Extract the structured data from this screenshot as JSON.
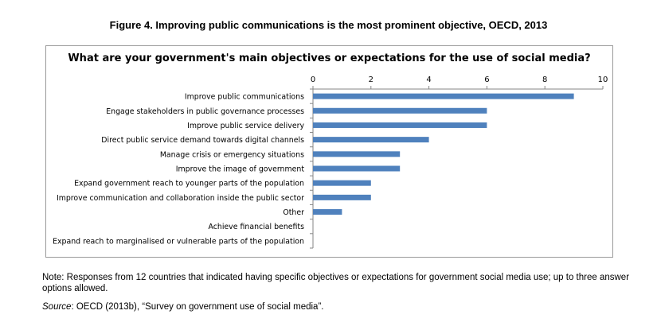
{
  "figure_title": "Figure 4.  Improving public communications is the most prominent objective, OECD, 2013",
  "note": "Note: Responses from 12 countries that indicated having specific objectives or expectations for government social media use; up to three answer options allowed.",
  "source": {
    "label": "Source",
    "text": ": OECD (2013b), “Survey on government use of social media”."
  },
  "colors": {
    "bar": "#4f81bd",
    "axis": "#868686",
    "frame": "#9a9a9a"
  },
  "chart_data": {
    "type": "bar",
    "orientation": "horizontal",
    "title": "What are your government's main objectives or expectations for the use of social media?",
    "xlabel": "",
    "ylabel": "",
    "xlim": [
      0,
      10
    ],
    "x_ticks": [
      0,
      2,
      4,
      6,
      8,
      10
    ],
    "x_axis_position": "top",
    "grid": false,
    "categories": [
      "Improve public communications",
      "Engage stakeholders in public governance processes",
      "Improve public service delivery",
      "Direct public service demand towards digital channels",
      "Manage crisis or emergency situations",
      "Improve the image of government",
      "Expand government reach to younger parts of the population",
      "Improve communication and collaboration inside the public sector",
      "Other",
      "Achieve financial benefits",
      "Expand reach to marginalised or vulnerable parts of the population"
    ],
    "values": [
      9,
      6,
      6,
      4,
      3,
      3,
      2,
      2,
      1,
      0,
      0
    ]
  }
}
